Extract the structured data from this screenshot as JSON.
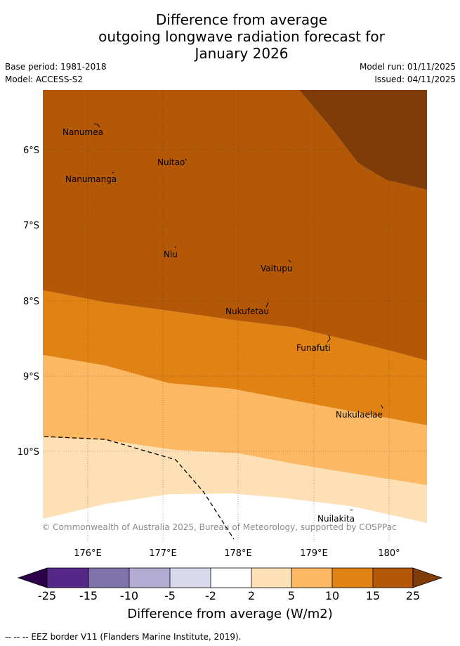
{
  "title": {
    "line1": "Difference from average",
    "line2": "outgoing longwave radiation forecast for",
    "line3": "January 2026"
  },
  "meta": {
    "base_period": "Base period: 1981-2018",
    "model": "Model: ACCESS-S2",
    "model_run": "Model run: 01/11/2025",
    "issued": "Issued: 04/11/2025"
  },
  "map": {
    "latitude_labels": [
      "6°S",
      "7°S",
      "8°S",
      "9°S",
      "10°S"
    ],
    "longitude_labels": [
      "176°E",
      "177°E",
      "178°E",
      "179°E",
      "180°"
    ],
    "places": [
      "Nanumea",
      "Nuitao",
      "Nanumanga",
      "Niu",
      "Vaitupu",
      "Nukufetau",
      "Funafuti",
      "Nukulaelae",
      "Nuilakita"
    ],
    "copyright": "© Commonwealth of Australia 2025, Bureau of Meteorology, supported by COSPPac",
    "colors": {
      "gt_25": "#7f3b08",
      "15_25": "#b35806",
      "10_15": "#e08214",
      "5_10": "#fdb863",
      "2_5": "#fee0b6",
      "neutral": "#ffffff"
    }
  },
  "colorbar": {
    "tick_labels": [
      "-25",
      "-15",
      "-10",
      "-5",
      "-2",
      "2",
      "5",
      "10",
      "15",
      "25"
    ],
    "colors": [
      "#2d004b",
      "#542788",
      "#8073ac",
      "#b2abd2",
      "#d8daeb",
      "#ffffff",
      "#fee0b6",
      "#fdb863",
      "#e08214",
      "#b35806",
      "#7f3b08"
    ],
    "title": "Difference from average (W/m2)"
  },
  "footer": "--  --  -- EEZ border V11 (Flanders Marine Institute, 2019)."
}
